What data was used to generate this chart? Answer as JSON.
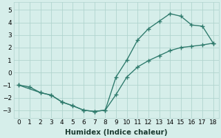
{
  "title": "",
  "xlabel": "Humidex (Indice chaleur)",
  "ylabel": "",
  "background_color": "#d6eeea",
  "grid_color": "#b0d4ce",
  "line_color": "#2e7a6c",
  "xlim": [
    -0.5,
    18.5
  ],
  "ylim": [
    -3.6,
    5.6
  ],
  "yticks": [
    -3,
    -2,
    -1,
    0,
    1,
    2,
    3,
    4,
    5
  ],
  "xticks": [
    0,
    1,
    2,
    3,
    4,
    5,
    6,
    7,
    8,
    9,
    10,
    11,
    12,
    13,
    14,
    15,
    16,
    17,
    18
  ],
  "line1_x": [
    0,
    1,
    2,
    3,
    4,
    5,
    6,
    7,
    8,
    9,
    10,
    11,
    12,
    13,
    14,
    15,
    16,
    17,
    18
  ],
  "line1_y": [
    -1.0,
    -1.15,
    -1.6,
    -1.8,
    -2.35,
    -2.65,
    -3.0,
    -3.1,
    -3.0,
    -0.35,
    1.0,
    2.6,
    3.5,
    4.1,
    4.7,
    4.5,
    3.8,
    3.7,
    2.35
  ],
  "line2_x": [
    0,
    2,
    3,
    4,
    5,
    6,
    7,
    8,
    9,
    10,
    11,
    12,
    13,
    14,
    15,
    16,
    17,
    18
  ],
  "line2_y": [
    -1.0,
    -1.6,
    -1.8,
    -2.35,
    -2.65,
    -3.0,
    -3.1,
    -3.0,
    -1.75,
    -0.35,
    0.45,
    0.95,
    1.35,
    1.75,
    2.0,
    2.1,
    2.2,
    2.35
  ],
  "marker_size": 5,
  "line_width": 1.0
}
